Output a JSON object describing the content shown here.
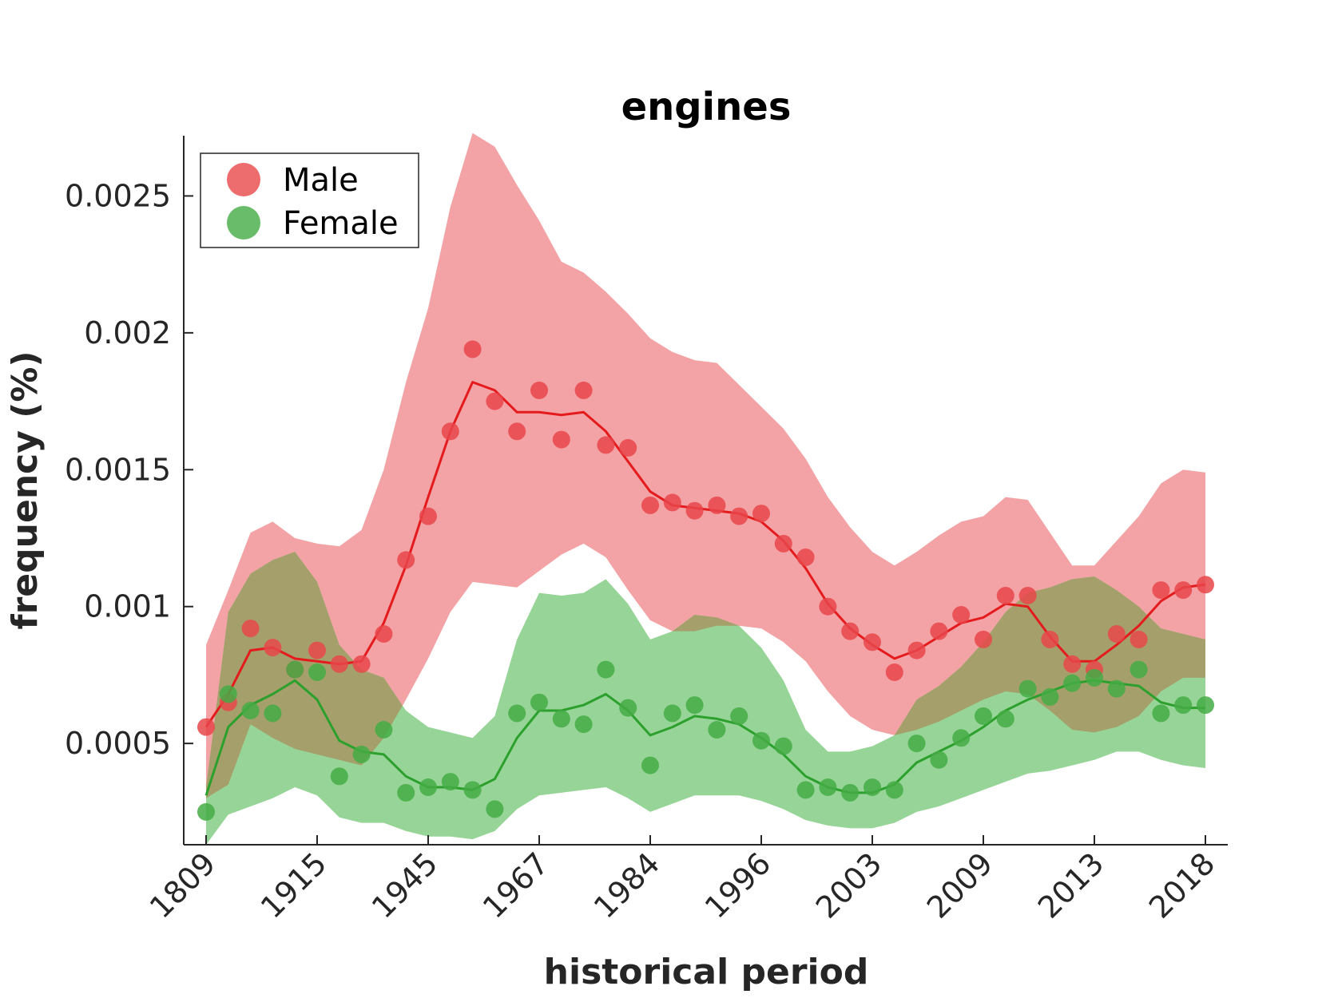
{
  "chart_data": {
    "type": "scatter",
    "title": "engines",
    "xlabel": "historical period",
    "ylabel": "frequency (%)",
    "x_tick_labels": [
      "1809",
      "1915",
      "1945",
      "1967",
      "1984",
      "1996",
      "2003",
      "2009",
      "2013",
      "2018"
    ],
    "y_ticks": [
      0.0005,
      0.001,
      0.0015,
      0.002,
      0.0025
    ],
    "y_tick_labels": [
      "0.0005",
      "0.001",
      "0.0015",
      "0.002",
      "0.0025"
    ],
    "ylim": [
      0.00013,
      0.00272
    ],
    "x_index_range": [
      0,
      45
    ],
    "grid": false,
    "legend_position": "top-left",
    "series": [
      {
        "name": "Male",
        "color": "#e41a1c",
        "marker_color": "#e8474a",
        "band_color": "#f3a3a5",
        "points": [
          0.00056,
          0.00065,
          0.00092,
          0.00085,
          0.00077,
          0.00084,
          0.00079,
          0.00079,
          0.0009,
          0.00117,
          0.00133,
          0.00164,
          0.00194,
          0.00175,
          0.00164,
          0.00179,
          0.00161,
          0.00179,
          0.00159,
          0.00158,
          0.00137,
          0.00138,
          0.00135,
          0.00137,
          0.00133,
          0.00134,
          0.00123,
          0.00118,
          0.001,
          0.00091,
          0.00087,
          0.00076,
          0.00084,
          0.00091,
          0.00097,
          0.00088,
          0.00104,
          0.00104,
          0.00088,
          0.00079,
          0.00077,
          0.0009,
          0.00088,
          0.00106,
          0.00106,
          0.00108
        ],
        "trend": [
          0.00056,
          0.00068,
          0.00084,
          0.00085,
          0.00081,
          0.0008,
          0.00079,
          0.0008,
          0.00094,
          0.00115,
          0.0014,
          0.00164,
          0.00182,
          0.00179,
          0.00171,
          0.00171,
          0.0017,
          0.00171,
          0.00164,
          0.00153,
          0.00142,
          0.00137,
          0.00136,
          0.00135,
          0.00134,
          0.00131,
          0.00124,
          0.00114,
          0.00101,
          0.00092,
          0.00086,
          0.00081,
          0.00084,
          0.00089,
          0.00094,
          0.00096,
          0.00101,
          0.001,
          0.00089,
          0.0008,
          0.0008,
          0.00086,
          0.00093,
          0.00102,
          0.00107,
          0.00108
        ],
        "band_upper": [
          0.00086,
          0.00106,
          0.00127,
          0.00131,
          0.00125,
          0.00123,
          0.00122,
          0.00128,
          0.0015,
          0.00182,
          0.00209,
          0.00246,
          0.00273,
          0.00268,
          0.00254,
          0.00241,
          0.00226,
          0.00222,
          0.00215,
          0.00207,
          0.00198,
          0.00193,
          0.0019,
          0.00189,
          0.00181,
          0.00173,
          0.00165,
          0.00154,
          0.0014,
          0.00129,
          0.0012,
          0.00115,
          0.0012,
          0.00126,
          0.00131,
          0.00133,
          0.0014,
          0.00139,
          0.00127,
          0.00115,
          0.00115,
          0.00124,
          0.00133,
          0.00145,
          0.0015,
          0.00149
        ],
        "band_lower": [
          0.0003,
          0.00035,
          0.00057,
          0.00052,
          0.00048,
          0.00046,
          0.00044,
          0.00042,
          0.00052,
          0.00066,
          0.00081,
          0.00098,
          0.00109,
          0.00108,
          0.00107,
          0.00113,
          0.00119,
          0.00123,
          0.00118,
          0.00106,
          0.00095,
          0.00091,
          0.00091,
          0.00093,
          0.00093,
          0.00092,
          0.00087,
          0.0008,
          0.00069,
          0.0006,
          0.00055,
          0.00053,
          0.00055,
          0.00058,
          0.00062,
          0.00066,
          0.00069,
          0.00068,
          0.00062,
          0.00055,
          0.00054,
          0.00056,
          0.0006,
          0.00069,
          0.00074,
          0.00074
        ]
      },
      {
        "name": "Female",
        "color": "#2ca02c",
        "marker_color": "#44ab44",
        "band_color": "#97d497",
        "points": [
          0.00025,
          0.00068,
          0.00062,
          0.00061,
          0.00077,
          0.00076,
          0.00038,
          0.00046,
          0.00055,
          0.00032,
          0.00034,
          0.00036,
          0.00033,
          0.00026,
          0.00061,
          0.00065,
          0.00059,
          0.00057,
          0.00077,
          0.00063,
          0.00042,
          0.00061,
          0.00064,
          0.00055,
          0.0006,
          0.00051,
          0.00049,
          0.00033,
          0.00034,
          0.00032,
          0.00034,
          0.00033,
          0.0005,
          0.00044,
          0.00052,
          0.0006,
          0.00059,
          0.0007,
          0.00067,
          0.00072,
          0.00074,
          0.0007,
          0.00077,
          0.00061,
          0.00064,
          0.00064
        ],
        "trend": [
          0.00031,
          0.00056,
          0.00064,
          0.00068,
          0.00073,
          0.00066,
          0.00051,
          0.00047,
          0.00046,
          0.00038,
          0.00034,
          0.00034,
          0.00033,
          0.00037,
          0.00052,
          0.00062,
          0.00062,
          0.00064,
          0.00068,
          0.00062,
          0.00053,
          0.00056,
          0.0006,
          0.00059,
          0.00057,
          0.00052,
          0.00046,
          0.00038,
          0.00034,
          0.00032,
          0.00032,
          0.00035,
          0.00043,
          0.00047,
          0.00051,
          0.00056,
          0.00062,
          0.00066,
          0.00069,
          0.00072,
          0.00073,
          0.00072,
          0.00071,
          0.00065,
          0.00063,
          0.00063
        ],
        "band_upper": [
          0.00034,
          0.00098,
          0.00112,
          0.00117,
          0.0012,
          0.00109,
          0.00086,
          0.00077,
          0.00074,
          0.00062,
          0.00056,
          0.00054,
          0.00052,
          0.0006,
          0.00088,
          0.00105,
          0.00104,
          0.00105,
          0.0011,
          0.00101,
          0.00088,
          0.00091,
          0.00097,
          0.00096,
          0.00093,
          0.00085,
          0.00073,
          0.00055,
          0.00047,
          0.00047,
          0.00049,
          0.00053,
          0.00066,
          0.00071,
          0.00078,
          0.00087,
          0.00098,
          0.00105,
          0.00107,
          0.0011,
          0.00111,
          0.00106,
          0.001,
          0.00092,
          0.0009,
          0.00088
        ],
        "band_lower": [
          0.00013,
          0.00024,
          0.00027,
          0.0003,
          0.00034,
          0.00031,
          0.00023,
          0.00021,
          0.00021,
          0.00018,
          0.00016,
          0.00016,
          0.00015,
          0.00018,
          0.00026,
          0.00031,
          0.00032,
          0.00033,
          0.00034,
          0.0003,
          0.00025,
          0.00028,
          0.00031,
          0.00031,
          0.00031,
          0.00029,
          0.00026,
          0.00022,
          0.0002,
          0.00019,
          0.00019,
          0.00021,
          0.00025,
          0.00027,
          0.0003,
          0.00033,
          0.00036,
          0.00039,
          0.0004,
          0.00042,
          0.00044,
          0.00047,
          0.00047,
          0.00044,
          0.00042,
          0.00041
        ]
      }
    ]
  }
}
